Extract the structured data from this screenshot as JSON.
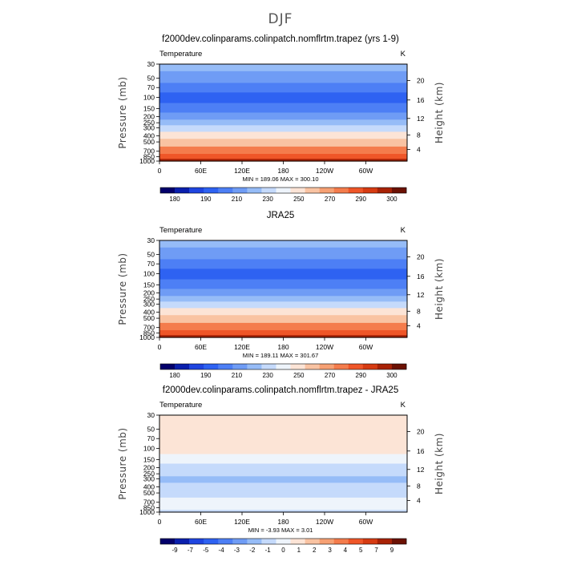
{
  "figure": {
    "title": "DJF"
  },
  "chart_data": [
    {
      "type": "heatmap",
      "title": "f2000dev.colinparams.colinpatch.nomflrtm.trapez (yrs 1-9)",
      "left_label": "Temperature",
      "right_label": "K",
      "xlabel": "",
      "ylabel": "Pressure (mb)",
      "ylabel_right": "Height (km)",
      "x_ticks": [
        "0",
        "60E",
        "120E",
        "180",
        "120W",
        "60W"
      ],
      "y_ticks": [
        "30",
        "50",
        "70",
        "100",
        "150",
        "200",
        "250",
        "300",
        "400",
        "500",
        "700",
        "850",
        "1000"
      ],
      "y_ticks_right": [
        "20",
        "16",
        "12",
        "8",
        "4"
      ],
      "min_max_text": "MIN = 189.06   MAX = 300.10",
      "colorbar_labels": [
        "180",
        "190",
        "210",
        "230",
        "250",
        "270",
        "290",
        "300"
      ],
      "colorbar_colors": [
        "#03006b",
        "#0a1fad",
        "#1f45e0",
        "#2e62f2",
        "#4d7ff5",
        "#6f9cf5",
        "#96bcf7",
        "#c5dafb",
        "#eef4fb",
        "#fce4d6",
        "#f9c3a2",
        "#f6a073",
        "#f47c4c",
        "#ef5628",
        "#d63b12",
        "#a82206",
        "#6b1103"
      ],
      "profile": [
        {
          "p": 30,
          "v": 222
        },
        {
          "p": 50,
          "v": 215
        },
        {
          "p": 70,
          "v": 206
        },
        {
          "p": 100,
          "v": 200
        },
        {
          "p": 150,
          "v": 210
        },
        {
          "p": 200,
          "v": 218
        },
        {
          "p": 250,
          "v": 224
        },
        {
          "p": 300,
          "v": 231
        },
        {
          "p": 400,
          "v": 244
        },
        {
          "p": 500,
          "v": 255
        },
        {
          "p": 700,
          "v": 270
        },
        {
          "p": 850,
          "v": 280
        },
        {
          "p": 1000,
          "v": 292
        }
      ]
    },
    {
      "type": "heatmap",
      "title": "JRA25",
      "left_label": "Temperature",
      "right_label": "K",
      "xlabel": "",
      "ylabel": "Pressure (mb)",
      "ylabel_right": "Height (km)",
      "x_ticks": [
        "0",
        "60E",
        "120E",
        "180",
        "120W",
        "60W"
      ],
      "y_ticks": [
        "30",
        "50",
        "70",
        "100",
        "150",
        "200",
        "250",
        "300",
        "400",
        "500",
        "700",
        "850",
        "1000"
      ],
      "y_ticks_right": [
        "20",
        "16",
        "12",
        "8",
        "4"
      ],
      "min_max_text": "MIN = 189.11   MAX = 301.67",
      "colorbar_labels": [
        "180",
        "190",
        "210",
        "230",
        "250",
        "270",
        "290",
        "300"
      ],
      "colorbar_colors": [
        "#03006b",
        "#0a1fad",
        "#1f45e0",
        "#2e62f2",
        "#4d7ff5",
        "#6f9cf5",
        "#96bcf7",
        "#c5dafb",
        "#eef4fb",
        "#fce4d6",
        "#f9c3a2",
        "#f6a073",
        "#f47c4c",
        "#ef5628",
        "#d63b12",
        "#a82206",
        "#6b1103"
      ],
      "profile": [
        {
          "p": 30,
          "v": 223
        },
        {
          "p": 50,
          "v": 215
        },
        {
          "p": 70,
          "v": 206
        },
        {
          "p": 100,
          "v": 200
        },
        {
          "p": 150,
          "v": 211
        },
        {
          "p": 200,
          "v": 219
        },
        {
          "p": 250,
          "v": 225
        },
        {
          "p": 300,
          "v": 232
        },
        {
          "p": 400,
          "v": 245
        },
        {
          "p": 500,
          "v": 256
        },
        {
          "p": 700,
          "v": 271
        },
        {
          "p": 850,
          "v": 281
        },
        {
          "p": 1000,
          "v": 293
        }
      ]
    },
    {
      "type": "heatmap",
      "title": "f2000dev.colinparams.colinpatch.nomflrtm.trapez - JRA25",
      "left_label": "Temperature",
      "right_label": "K",
      "xlabel": "",
      "ylabel": "Pressure (mb)",
      "ylabel_right": "Height (km)",
      "x_ticks": [
        "0",
        "60E",
        "120E",
        "180",
        "120W",
        "60W"
      ],
      "y_ticks": [
        "30",
        "50",
        "70",
        "100",
        "150",
        "200",
        "250",
        "300",
        "400",
        "500",
        "700",
        "850",
        "1000"
      ],
      "y_ticks_right": [
        "20",
        "16",
        "12",
        "8",
        "4"
      ],
      "min_max_text": "MIN =   -3.93   MAX =    3.01",
      "colorbar_labels": [
        "-9",
        "-7",
        "-5",
        "-4",
        "-3",
        "-2",
        "-1",
        "0",
        "1",
        "2",
        "3",
        "4",
        "5",
        "7",
        "9"
      ],
      "colorbar_colors": [
        "#03006b",
        "#0a1fad",
        "#1f45e0",
        "#2e62f2",
        "#4d7ff5",
        "#6f9cf5",
        "#96bcf7",
        "#c5dafb",
        "#eef4fb",
        "#fce4d6",
        "#f9c3a2",
        "#f6a073",
        "#f47c4c",
        "#ef5628",
        "#d63b12",
        "#a82206",
        "#6b1103"
      ],
      "profile": [
        {
          "p": 30,
          "v": 1.2
        },
        {
          "p": 50,
          "v": 1.0
        },
        {
          "p": 70,
          "v": 0.6
        },
        {
          "p": 100,
          "v": 1.0
        },
        {
          "p": 150,
          "v": -0.5
        },
        {
          "p": 200,
          "v": -1.2
        },
        {
          "p": 250,
          "v": -1.5
        },
        {
          "p": 300,
          "v": -2.5
        },
        {
          "p": 400,
          "v": -1.5
        },
        {
          "p": 500,
          "v": -1.0
        },
        {
          "p": 700,
          "v": 0.3
        },
        {
          "p": 850,
          "v": -0.6
        },
        {
          "p": 1000,
          "v": -1.2
        }
      ]
    }
  ]
}
